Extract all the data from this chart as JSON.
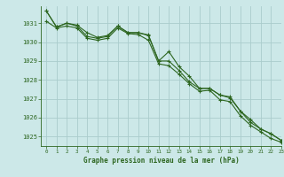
{
  "background_color": "#cce8e8",
  "grid_color": "#aacccc",
  "line_color": "#2d6620",
  "title": "Graphe pression niveau de la mer (hPa)",
  "xlim": [
    -0.5,
    23
  ],
  "ylim": [
    1024.5,
    1031.9
  ],
  "yticks": [
    1025,
    1026,
    1027,
    1028,
    1029,
    1030,
    1031
  ],
  "xticks": [
    0,
    1,
    2,
    3,
    4,
    5,
    6,
    7,
    8,
    9,
    10,
    11,
    12,
    13,
    14,
    15,
    16,
    17,
    18,
    19,
    20,
    21,
    22,
    23
  ],
  "series": [
    [
      1031.65,
      1030.8,
      1031.0,
      1030.9,
      1030.5,
      1030.25,
      1030.35,
      1030.85,
      1030.5,
      1030.5,
      1030.38,
      1029.0,
      1029.5,
      1028.7,
      1028.2,
      1027.55,
      1027.55,
      1027.2,
      1027.1,
      1026.35,
      1025.9,
      1025.4,
      1025.15,
      1024.8
    ],
    [
      1031.65,
      1030.8,
      1031.0,
      1030.85,
      1030.3,
      1030.2,
      1030.3,
      1030.85,
      1030.5,
      1030.5,
      1030.35,
      1029.0,
      1029.0,
      1028.5,
      1027.9,
      1027.55,
      1027.55,
      1027.2,
      1027.05,
      1026.35,
      1025.75,
      1025.4,
      1025.15,
      1024.8
    ],
    [
      1031.1,
      1030.75,
      1030.85,
      1030.75,
      1030.2,
      1030.1,
      1030.2,
      1030.75,
      1030.45,
      1030.4,
      1030.1,
      1028.85,
      1028.75,
      1028.3,
      1027.8,
      1027.4,
      1027.45,
      1026.95,
      1026.85,
      1026.1,
      1025.6,
      1025.25,
      1024.9,
      1024.7
    ]
  ]
}
